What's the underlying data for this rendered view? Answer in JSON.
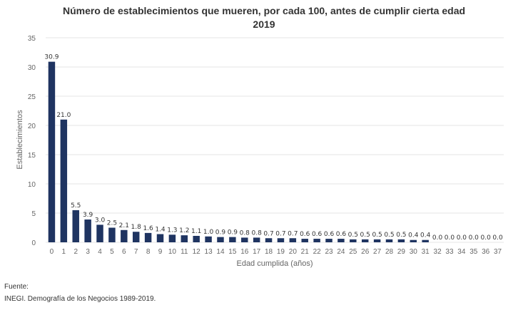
{
  "colors": {
    "bar": "#1f3461",
    "grid": "#e6e6e6",
    "axis_text": "#666666",
    "label_text": "#333333"
  },
  "source": {
    "label": "Fuente:",
    "text": "INEGI. Demografía de los Negocios 1989-2019."
  },
  "chart_data": {
    "type": "bar",
    "title_line1": "Número de establecimientos que mueren, por cada 100, antes de cumplir cierta edad",
    "title_line2": "2019",
    "xlabel": "Edad cumplida (años)",
    "ylabel": "Establecimientos",
    "ylim": [
      0,
      35
    ],
    "yticks": [
      0,
      5,
      10,
      15,
      20,
      25,
      30,
      35
    ],
    "grid": true,
    "categories": [
      "0",
      "1",
      "2",
      "3",
      "4",
      "5",
      "6",
      "7",
      "8",
      "9",
      "10",
      "11",
      "12",
      "13",
      "14",
      "15",
      "16",
      "17",
      "18",
      "19",
      "20",
      "21",
      "22",
      "23",
      "24",
      "25",
      "26",
      "27",
      "28",
      "29",
      "30",
      "31",
      "32",
      "33",
      "34",
      "35",
      "36",
      "37"
    ],
    "values": [
      30.9,
      21.0,
      5.5,
      3.9,
      3.0,
      2.5,
      2.1,
      1.8,
      1.6,
      1.4,
      1.3,
      1.2,
      1.1,
      1.0,
      0.9,
      0.9,
      0.8,
      0.8,
      0.7,
      0.7,
      0.7,
      0.6,
      0.6,
      0.6,
      0.6,
      0.5,
      0.5,
      0.5,
      0.5,
      0.5,
      0.4,
      0.4,
      0.0,
      0.0,
      0.0,
      0.0,
      0.0,
      0.0
    ],
    "value_labels": [
      "30.9",
      "21.0",
      "5.5",
      "3.9",
      "3.0",
      "2.5",
      "2.1",
      "1.8",
      "1.6",
      "1.4",
      "1.3",
      "1.2",
      "1.1",
      "1.0",
      "0.9",
      "0.9",
      "0.8",
      "0.8",
      "0.7",
      "0.7",
      "0.7",
      "0.6",
      "0.6",
      "0.6",
      "0.6",
      "0.5",
      "0.5",
      "0.5",
      "0.5",
      "0.5",
      "0.4",
      "0.4",
      "0.0",
      "0.0",
      "0.0",
      "0.0",
      "0.0",
      "0.0"
    ]
  }
}
